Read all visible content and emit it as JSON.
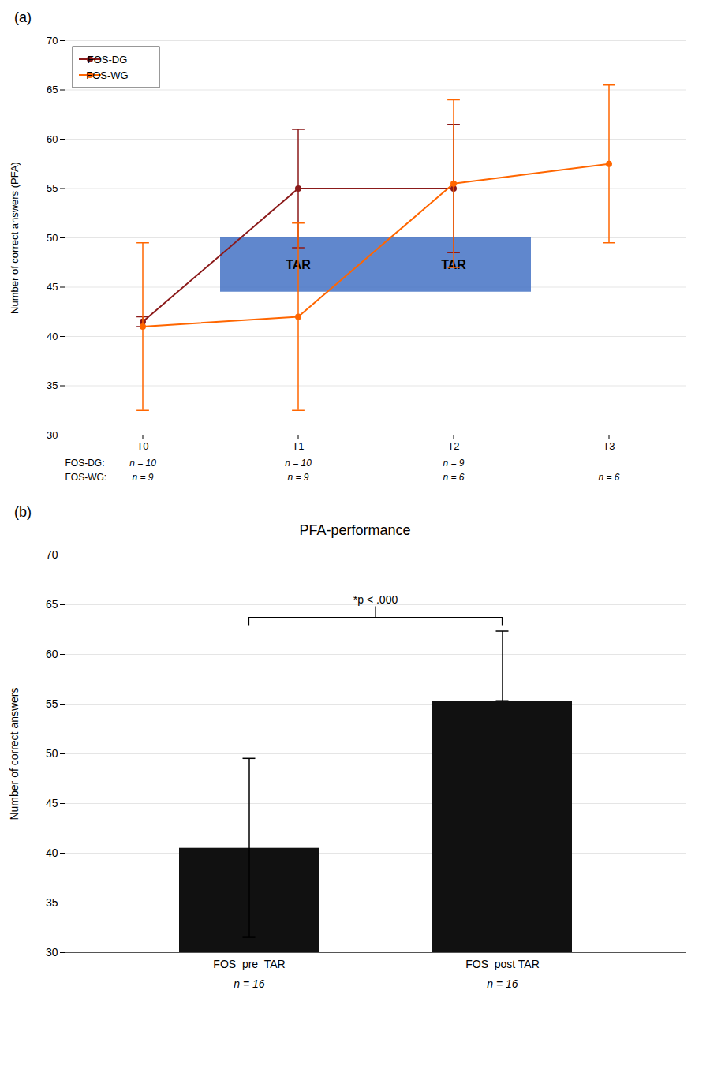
{
  "chart_data": [
    {
      "type": "line",
      "panel_label": "(a)",
      "categories": [
        "T0",
        "T1",
        "T2",
        "T3"
      ],
      "ylabel": "Number of correct answers (PFA)",
      "ylim": [
        30,
        70
      ],
      "yticks": [
        30,
        35,
        40,
        45,
        50,
        55,
        60,
        65,
        70
      ],
      "grid": true,
      "legend": "upper left",
      "series": [
        {
          "name": "FOS-DG",
          "color": "#8B1A1A",
          "marker": "circle",
          "values": [
            41.5,
            55.0,
            55.0,
            null
          ],
          "error_low": [
            0.5,
            6.0,
            6.5,
            null
          ],
          "error_high": [
            0.5,
            6.0,
            6.5,
            null
          ],
          "n_row_label": "FOS-DG:",
          "n_labels": [
            "n = 10",
            "n = 10",
            "n = 9",
            null
          ]
        },
        {
          "name": "FOS-WG",
          "color": "#FF6600",
          "marker": "circle",
          "values": [
            41.0,
            42.0,
            55.5,
            57.5
          ],
          "error_low": [
            8.5,
            9.5,
            8.5,
            8.0
          ],
          "error_high": [
            8.5,
            9.5,
            8.5,
            8.0
          ],
          "n_row_label": "FOS-WG:",
          "n_labels": [
            "n = 9",
            "n = 9",
            "n = 6",
            "n = 6"
          ]
        }
      ],
      "boxes": [
        {
          "category": "T1",
          "y0": 44.5,
          "y1": 50,
          "text": "TAR",
          "color": "#4472C4"
        },
        {
          "category": "T2",
          "y0": 44.5,
          "y1": 50,
          "text": "TAR",
          "color": "#4472C4"
        }
      ]
    },
    {
      "type": "bar",
      "panel_label": "(b)",
      "title": "PFA-performance",
      "categories": [
        "FOS  pre  TAR",
        "FOS  post TAR"
      ],
      "n_labels": [
        "n = 16",
        "n = 16"
      ],
      "values": [
        40.5,
        55.3
      ],
      "error_low": [
        9.0,
        0
      ],
      "error_high": [
        9.0,
        7.0
      ],
      "color": "#111111",
      "ylabel": "Number of correct answers",
      "ylim": [
        30,
        70
      ],
      "yticks": [
        30,
        35,
        40,
        45,
        50,
        55,
        60,
        65,
        70
      ],
      "grid": true,
      "bracket": {
        "from": "FOS  pre  TAR",
        "to": "FOS  post TAR",
        "y": 64.8,
        "text": "*p < .000"
      }
    }
  ]
}
